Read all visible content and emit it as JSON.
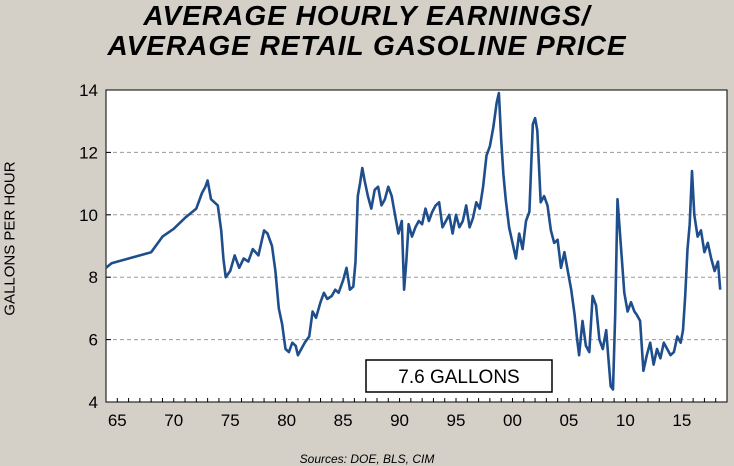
{
  "chart_data": {
    "type": "line",
    "title_lines": [
      "AVERAGE HOURLY EARNINGS/",
      "AVERAGE RETAIL GASOLINE PRICE"
    ],
    "ylabel": "GALLONS PER HOUR",
    "xlabel": "",
    "source": "Sources:  DOE, BLS, CIM",
    "annotation": "7.6 GALLONS",
    "xlim": [
      1964,
      2019
    ],
    "ylim": [
      4,
      14
    ],
    "x_tick_labels": [
      "65",
      "70",
      "75",
      "80",
      "85",
      "90",
      "95",
      "00",
      "05",
      "10",
      "15"
    ],
    "x_tick_values": [
      1965,
      1970,
      1975,
      1980,
      1985,
      1990,
      1995,
      2000,
      2005,
      2010,
      2015
    ],
    "y_ticks": [
      4,
      6,
      8,
      10,
      12,
      14
    ],
    "grid": "horizontal dashed",
    "colors": {
      "line": "#1f4e8c",
      "plot_bg": "#ffffff",
      "page_bg": "#d4d0c8"
    },
    "series": [
      {
        "x": [
          1964.0,
          1964.5,
          1965.0,
          1966.0,
          1967.0,
          1968.0,
          1969.0,
          1970.0,
          1971.0,
          1972.0,
          1972.5,
          1972.8,
          1973.0,
          1973.3,
          1973.6,
          1973.9,
          1974.2,
          1974.4,
          1974.6,
          1975.0,
          1975.4,
          1975.8,
          1976.2,
          1976.6,
          1977.0,
          1977.5,
          1978.0,
          1978.3,
          1978.7,
          1979.0,
          1979.3,
          1979.6,
          1979.9,
          1980.2,
          1980.5,
          1980.8,
          1981.0,
          1981.3,
          1981.6,
          1982.0,
          1982.3,
          1982.6,
          1983.0,
          1983.3,
          1983.6,
          1984.0,
          1984.3,
          1984.6,
          1985.0,
          1985.3,
          1985.6,
          1985.9,
          1986.1,
          1986.3,
          1986.5,
          1986.7,
          1986.9,
          1987.2,
          1987.5,
          1987.8,
          1988.1,
          1988.4,
          1988.7,
          1989.0,
          1989.3,
          1989.6,
          1989.9,
          1990.2,
          1990.4,
          1990.6,
          1990.8,
          1991.1,
          1991.4,
          1991.7,
          1992.0,
          1992.3,
          1992.6,
          1992.9,
          1993.2,
          1993.5,
          1993.8,
          1994.1,
          1994.4,
          1994.7,
          1995.0,
          1995.3,
          1995.6,
          1995.9,
          1996.2,
          1996.5,
          1996.8,
          1997.1,
          1997.4,
          1997.7,
          1998.0,
          1998.3,
          1998.6,
          1998.8,
          1999.0,
          1999.2,
          1999.4,
          1999.7,
          2000.0,
          2000.3,
          2000.6,
          2000.9,
          2001.2,
          2001.5,
          2001.8,
          2002.0,
          2002.2,
          2002.5,
          2002.8,
          2003.1,
          2003.4,
          2003.7,
          2004.0,
          2004.3,
          2004.6,
          2004.9,
          2005.2,
          2005.5,
          2005.7,
          2005.9,
          2006.2,
          2006.5,
          2006.8,
          2007.1,
          2007.4,
          2007.7,
          2008.0,
          2008.3,
          2008.5,
          2008.7,
          2008.9,
          2009.1,
          2009.3,
          2009.6,
          2009.9,
          2010.2,
          2010.5,
          2010.8,
          2011.0,
          2011.3,
          2011.6,
          2011.9,
          2012.2,
          2012.5,
          2012.8,
          2013.1,
          2013.4,
          2013.7,
          2014.0,
          2014.3,
          2014.6,
          2014.9,
          2015.1,
          2015.3,
          2015.5,
          2015.7,
          2015.9,
          2016.1,
          2016.4,
          2016.7,
          2017.0,
          2017.3,
          2017.6,
          2017.9,
          2018.2,
          2018.4
        ],
        "y": [
          8.3,
          8.45,
          8.5,
          8.6,
          8.7,
          8.8,
          9.3,
          9.55,
          9.9,
          10.2,
          10.7,
          10.9,
          11.1,
          10.5,
          10.4,
          10.3,
          9.5,
          8.6,
          8.0,
          8.2,
          8.7,
          8.3,
          8.6,
          8.5,
          8.9,
          8.7,
          9.5,
          9.4,
          9.0,
          8.2,
          7.0,
          6.5,
          5.7,
          5.6,
          5.9,
          5.8,
          5.5,
          5.7,
          5.9,
          6.1,
          6.9,
          6.7,
          7.2,
          7.5,
          7.3,
          7.4,
          7.6,
          7.5,
          7.9,
          8.3,
          7.6,
          7.7,
          8.5,
          10.6,
          11.0,
          11.5,
          11.1,
          10.6,
          10.2,
          10.8,
          10.9,
          10.3,
          10.5,
          10.9,
          10.6,
          10.0,
          9.4,
          9.8,
          7.6,
          8.5,
          9.7,
          9.3,
          9.6,
          9.8,
          9.7,
          10.2,
          9.8,
          10.1,
          10.3,
          10.4,
          9.6,
          9.8,
          10.0,
          9.4,
          10.0,
          9.6,
          9.8,
          10.3,
          9.6,
          9.9,
          10.4,
          10.2,
          10.9,
          11.9,
          12.2,
          12.8,
          13.6,
          13.9,
          12.4,
          11.3,
          10.5,
          9.6,
          9.1,
          8.6,
          9.4,
          8.9,
          9.8,
          10.1,
          12.9,
          13.1,
          12.7,
          10.4,
          10.6,
          10.3,
          9.5,
          9.1,
          9.2,
          8.3,
          8.8,
          8.2,
          7.6,
          6.8,
          6.1,
          5.5,
          6.6,
          5.8,
          5.6,
          7.4,
          7.1,
          6.0,
          5.7,
          6.3,
          5.4,
          4.5,
          4.4,
          6.8,
          10.5,
          9.0,
          7.5,
          6.9,
          7.2,
          6.9,
          6.8,
          6.6,
          5.0,
          5.5,
          5.9,
          5.2,
          5.7,
          5.4,
          5.9,
          5.7,
          5.5,
          5.6,
          6.1,
          5.9,
          6.3,
          7.4,
          8.9,
          9.7,
          11.4,
          10.0,
          9.3,
          9.5,
          8.8,
          9.1,
          8.6,
          8.2,
          8.5,
          7.6
        ]
      }
    ]
  }
}
